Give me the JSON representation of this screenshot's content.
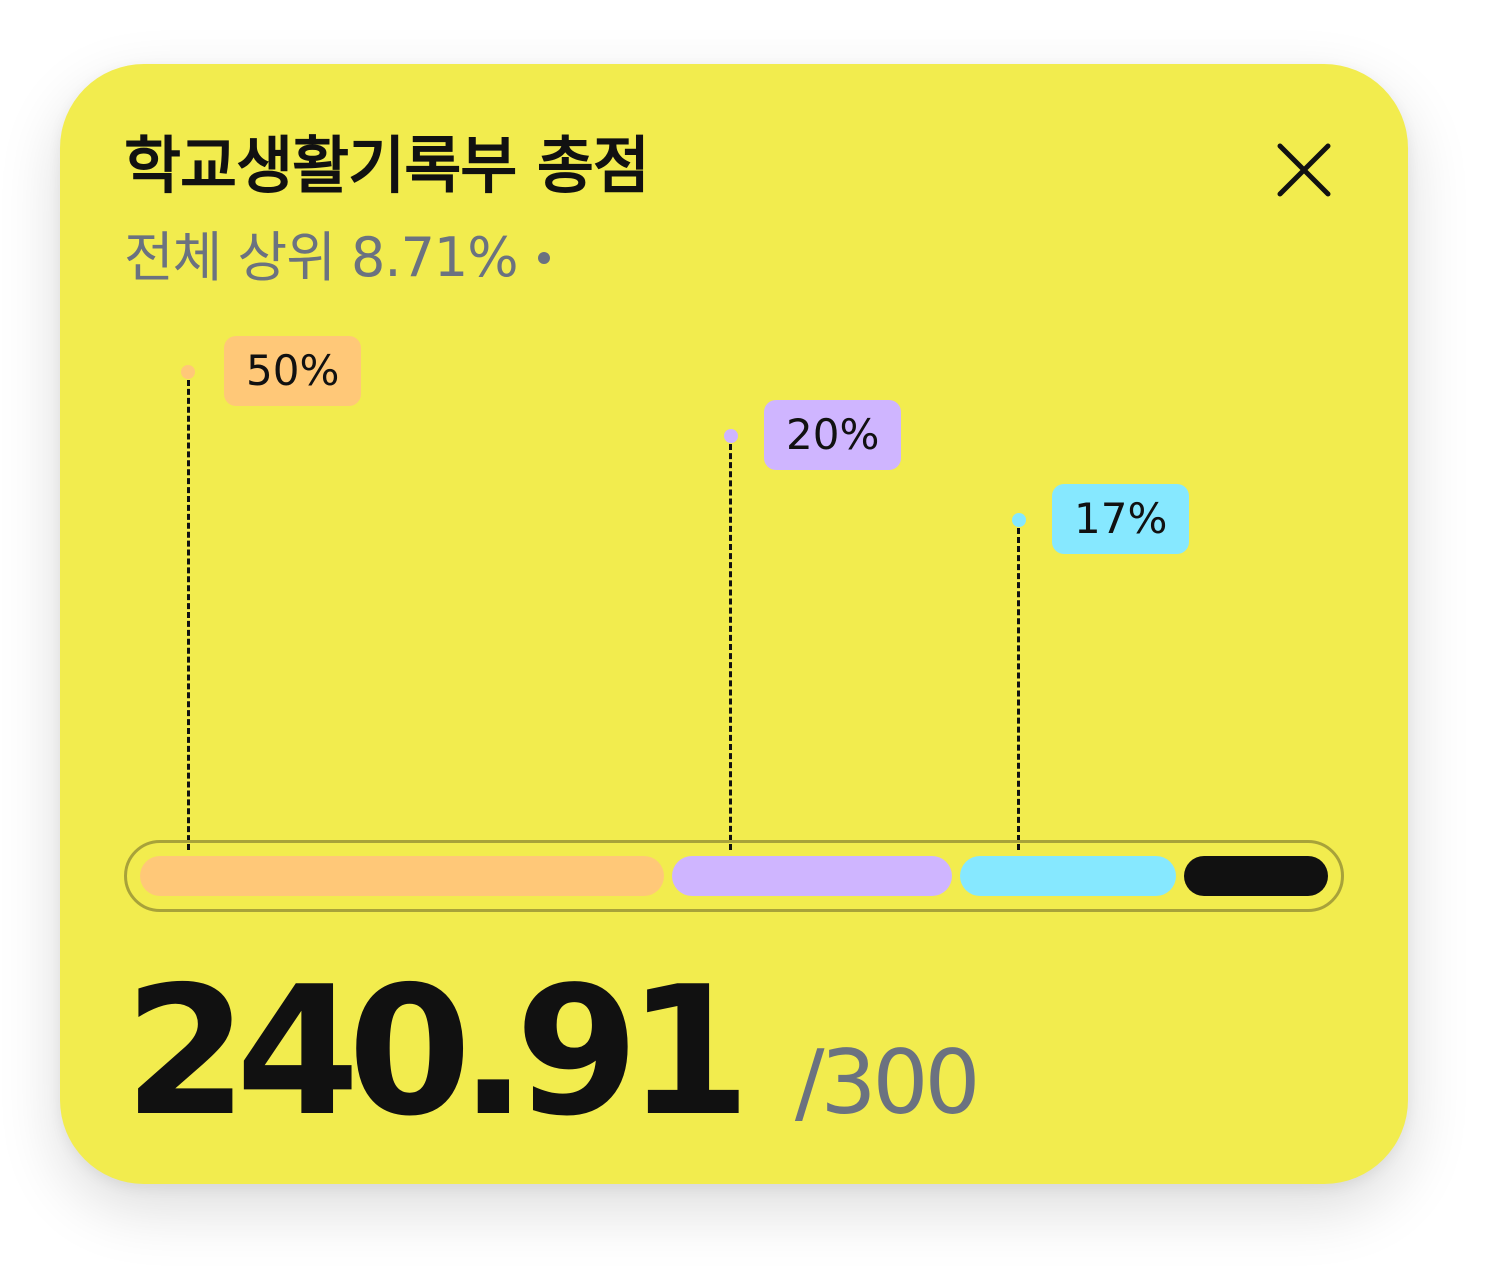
{
  "card": {
    "title": "학교생활기록부 총점",
    "subtitle": "전체 상위 8.71%",
    "close_icon": "close-icon",
    "background": "#F2EC4E"
  },
  "breakdown": [
    {
      "label": "50%",
      "percent": 50,
      "color": "#FFC878"
    },
    {
      "label": "20%",
      "percent": 20,
      "color": "#CFB5FF"
    },
    {
      "label": "17%",
      "percent": 17,
      "color": "#86E8FF"
    },
    {
      "percent": 13,
      "color": "#111111"
    }
  ],
  "score": {
    "value": "240.91",
    "max": "/300"
  }
}
